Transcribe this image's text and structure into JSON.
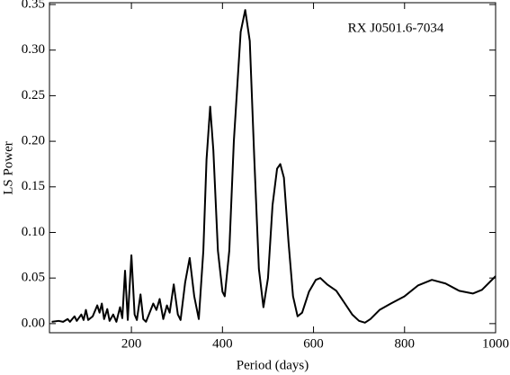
{
  "chart_data": {
    "type": "line",
    "annotation": "RX J0501.6-7034",
    "xlabel": "Period (days)",
    "ylabel": "LS Power",
    "xlim": [
      20,
      1000
    ],
    "ylim": [
      -0.01,
      0.352
    ],
    "xticks": [
      200,
      400,
      600,
      800,
      1000
    ],
    "yticks": [
      {
        "value": 0,
        "label": "0.00"
      },
      {
        "value": 0.05,
        "label": "0.05"
      },
      {
        "value": 0.1,
        "label": "0.10"
      },
      {
        "value": 0.15,
        "label": "0.15"
      },
      {
        "value": 0.2,
        "label": "0.20"
      },
      {
        "value": 0.25,
        "label": "0.25"
      },
      {
        "value": 0.3,
        "label": "0.30"
      },
      {
        "value": 0.35,
        "label": "0.35"
      }
    ],
    "series": [
      {
        "color": "#000000",
        "x": [
          25,
          40,
          50,
          60,
          65,
          75,
          80,
          90,
          95,
          100,
          105,
          115,
          125,
          130,
          135,
          140,
          147,
          152,
          160,
          167,
          175,
          180,
          186,
          192,
          200,
          207,
          212,
          220,
          226,
          232,
          240,
          248,
          255,
          262,
          270,
          278,
          284,
          293,
          302,
          308,
          318,
          328,
          338,
          348,
          358,
          365,
          373,
          380,
          390,
          400,
          405,
          415,
          425,
          440,
          450,
          460,
          470,
          480,
          490,
          500,
          510,
          520,
          527,
          535,
          545,
          555,
          565,
          575,
          590,
          605,
          615,
          630,
          650,
          665,
          685,
          700,
          713,
          725,
          745,
          770,
          800,
          830,
          860,
          890,
          920,
          950,
          970,
          1000
        ],
        "values": [
          0.002,
          0.003,
          0.002,
          0.005,
          0.002,
          0.008,
          0.003,
          0.01,
          0.004,
          0.015,
          0.004,
          0.008,
          0.02,
          0.012,
          0.022,
          0.005,
          0.016,
          0.003,
          0.01,
          0.002,
          0.018,
          0.006,
          0.058,
          0.004,
          0.075,
          0.01,
          0.004,
          0.032,
          0.005,
          0.002,
          0.012,
          0.022,
          0.015,
          0.027,
          0.005,
          0.02,
          0.012,
          0.043,
          0.01,
          0.004,
          0.045,
          0.072,
          0.03,
          0.005,
          0.08,
          0.18,
          0.238,
          0.19,
          0.08,
          0.035,
          0.03,
          0.08,
          0.2,
          0.32,
          0.344,
          0.31,
          0.18,
          0.06,
          0.018,
          0.05,
          0.13,
          0.17,
          0.175,
          0.16,
          0.09,
          0.03,
          0.008,
          0.012,
          0.035,
          0.048,
          0.05,
          0.043,
          0.036,
          0.025,
          0.01,
          0.003,
          0.001,
          0.005,
          0.015,
          0.022,
          0.03,
          0.042,
          0.048,
          0.044,
          0.036,
          0.033,
          0.037,
          0.052
        ]
      }
    ]
  }
}
